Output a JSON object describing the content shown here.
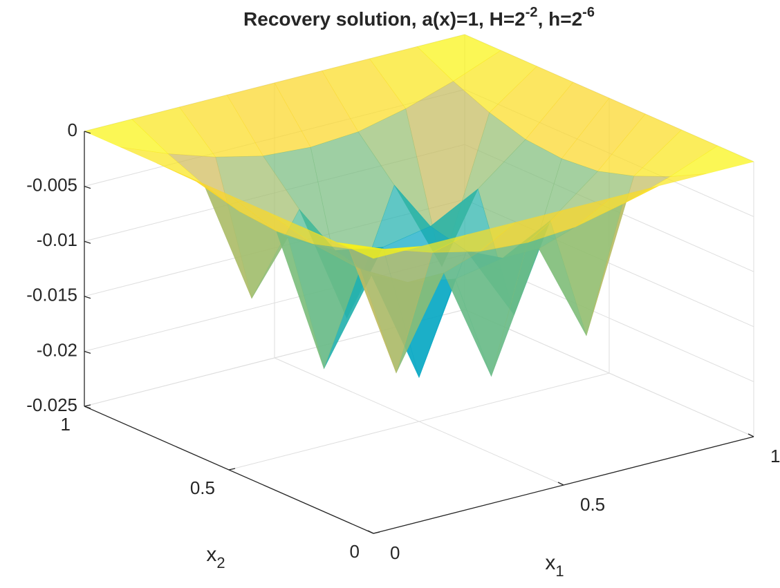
{
  "chart_data": {
    "type": "surface",
    "title": [
      "Recovery solution, a(x)=1, H=2",
      "-2",
      ", h=2",
      "-6"
    ],
    "xlabel": [
      "x",
      "1"
    ],
    "ylabel": [
      "x",
      "2"
    ],
    "x": [
      0,
      0.125,
      0.25,
      0.375,
      0.5,
      0.625,
      0.75,
      0.875,
      1
    ],
    "y": [
      0,
      0.125,
      0.25,
      0.375,
      0.5,
      0.625,
      0.75,
      0.875,
      1
    ],
    "z": [
      [
        0,
        0,
        0,
        0,
        0,
        0,
        0,
        0,
        0
      ],
      [
        0,
        -0.0017,
        -0.0031,
        -0.0041,
        -0.0044,
        -0.0041,
        -0.0031,
        -0.0017,
        0
      ],
      [
        0,
        -0.0031,
        -0.0155,
        -0.0075,
        -0.018,
        -0.0075,
        -0.0165,
        -0.0031,
        0
      ],
      [
        0,
        -0.0041,
        -0.0075,
        -0.0098,
        -0.0106,
        -0.0098,
        -0.0075,
        -0.0041,
        0
      ],
      [
        0,
        -0.0044,
        -0.018,
        -0.0106,
        -0.021,
        -0.0106,
        -0.0175,
        -0.0044,
        0
      ],
      [
        0,
        -0.0041,
        -0.0075,
        -0.0098,
        -0.0106,
        -0.0098,
        -0.0075,
        -0.0041,
        0
      ],
      [
        0,
        -0.0031,
        -0.0145,
        -0.0075,
        -0.0185,
        -0.0075,
        -0.016,
        -0.0031,
        0
      ],
      [
        0,
        -0.0017,
        -0.0031,
        -0.0041,
        -0.0044,
        -0.0041,
        -0.0031,
        -0.0017,
        0
      ],
      [
        0,
        0,
        0,
        0,
        0,
        0,
        0,
        0,
        0
      ]
    ],
    "xlim": [
      0,
      1
    ],
    "ylim": [
      0,
      1
    ],
    "zlim": [
      -0.025,
      0
    ],
    "xticks": [
      0,
      0.5,
      1
    ],
    "yticks": [
      0,
      0.5,
      1
    ],
    "zticks": [
      0,
      -0.005,
      -0.01,
      -0.015,
      -0.02,
      -0.025
    ],
    "grid": true,
    "colormap": "parula"
  }
}
